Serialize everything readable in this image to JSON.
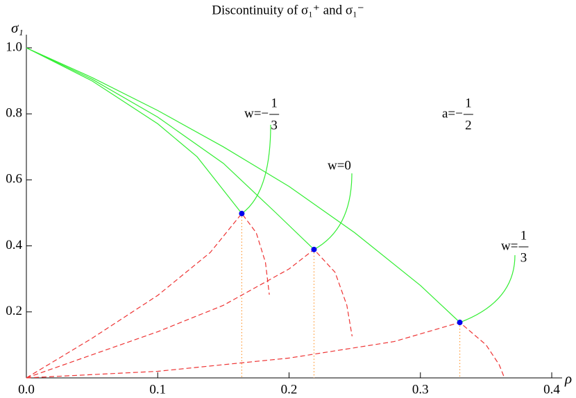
{
  "chart_data": {
    "type": "line",
    "title": "Discontinuity of σ₁⁺ and σ₁⁻",
    "x_label": "ρ",
    "y_label": "σ₁",
    "xlim": [
      0,
      0.405
    ],
    "ylim": [
      0,
      1.03
    ],
    "xticks": [
      {
        "value": 0,
        "label": "0.0"
      },
      0.1,
      0.2,
      0.3,
      0.4
    ],
    "yticks": [
      0.2,
      0.4,
      0.6,
      0.8,
      {
        "value": 1,
        "label": "1.0"
      }
    ],
    "series": [
      {
        "color": "#33ee33",
        "style": "solid",
        "x": [
          0,
          0.05,
          0.1,
          0.13,
          0.164
        ],
        "values": [
          1,
          0.9,
          0.77,
          0.67,
          0.498
        ]
      },
      {
        "color": "#33ee33",
        "style": "solid",
        "x": [
          0,
          0.05,
          0.1,
          0.15,
          0.19,
          0.219
        ],
        "values": [
          1,
          0.905,
          0.79,
          0.65,
          0.5,
          0.389
        ]
      },
      {
        "color": "#33ee33",
        "style": "solid",
        "x": [
          0,
          0.05,
          0.1,
          0.15,
          0.2,
          0.25,
          0.3,
          0.33
        ],
        "values": [
          1,
          0.91,
          0.81,
          0.7,
          0.58,
          0.44,
          0.28,
          0.168
        ]
      },
      {
        "color": "#ee3333",
        "style": "dashed",
        "x": [
          0,
          0.05,
          0.1,
          0.14,
          0.164,
          0.175,
          0.182,
          0.185
        ],
        "values": [
          0,
          0.12,
          0.25,
          0.38,
          0.498,
          0.44,
          0.35,
          0.252
        ]
      },
      {
        "color": "#ee3333",
        "style": "dashed",
        "x": [
          0,
          0.1,
          0.15,
          0.2,
          0.219,
          0.235,
          0.244,
          0.248
        ],
        "values": [
          0,
          0.14,
          0.22,
          0.33,
          0.389,
          0.32,
          0.22,
          0.126
        ]
      },
      {
        "color": "#ee3333",
        "style": "dashed",
        "x": [
          0,
          0.1,
          0.2,
          0.28,
          0.33,
          0.35,
          0.36,
          0.364
        ],
        "values": [
          0,
          0.02,
          0.06,
          0.11,
          0.168,
          0.1,
          0.04,
          0
        ]
      }
    ],
    "points": {
      "color": "#0000ee",
      "guide_color": "#ff9933",
      "x": [
        0.164,
        0.219,
        0.33
      ],
      "values": [
        0.498,
        0.389,
        0.168
      ]
    },
    "annotations": [
      {
        "prefix": "w=−",
        "numerator": "1",
        "denominator": "3"
      },
      {
        "prefix": "w=0"
      },
      {
        "prefix": "w=",
        "numerator": "1",
        "denominator": "3"
      },
      {
        "prefix": "a=−",
        "numerator": "1",
        "denominator": "2"
      }
    ]
  }
}
